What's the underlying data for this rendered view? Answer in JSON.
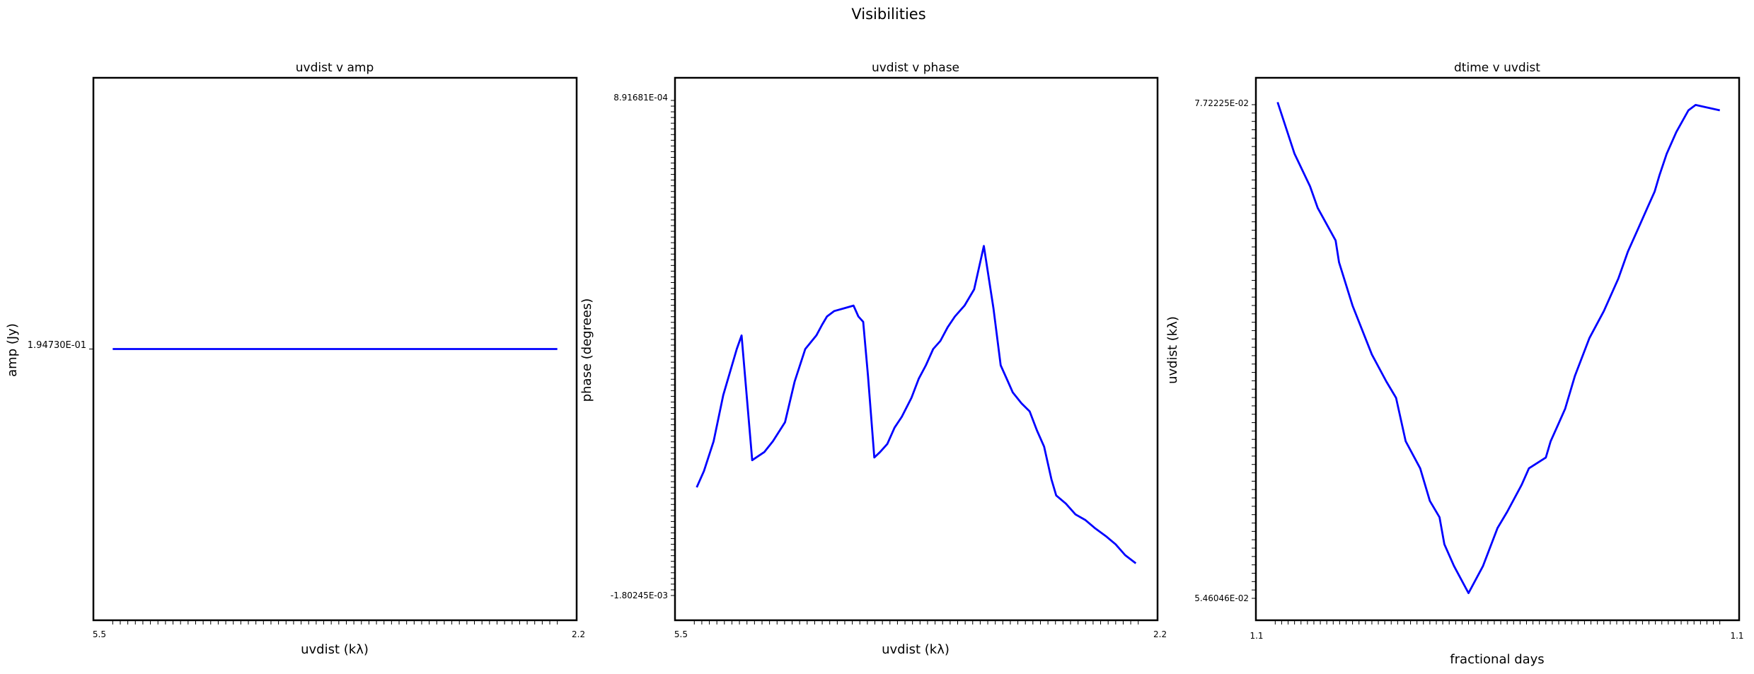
{
  "figure": {
    "title": "Visibilities"
  },
  "chart_data": [
    {
      "type": "line",
      "title": "uvdist v amp",
      "xlabel": "uvdist (kλ)",
      "ylabel": "amp (Jy)",
      "line_color": "#0000ff",
      "grid": false,
      "y_tick_labels": [
        "1.94730E-01"
      ],
      "x_first_tick_label": "5.5",
      "x_last_tick_label": "2.2",
      "x_tick_count": 60,
      "xlim": [
        0,
        1
      ],
      "ylim": [
        0,
        1
      ],
      "x": [
        0.04,
        0.96
      ],
      "y": [
        0.5,
        0.5
      ]
    },
    {
      "type": "line",
      "title": "uvdist v phase",
      "xlabel": "uvdist (kλ)",
      "ylabel": "phase (degrees)",
      "line_color": "#0000ff",
      "grid": false,
      "y_tick_labels": [
        "8.91681E-04",
        "-1.80245E-03"
      ],
      "x_first_tick_label": "5.5",
      "x_last_tick_label": "2.2",
      "x_tick_count": 60,
      "y_tick_count": 88,
      "xlim": [
        0,
        1
      ],
      "ylim": [
        0,
        1
      ],
      "x": [
        0.045,
        0.06,
        0.08,
        0.1,
        0.128,
        0.138,
        0.16,
        0.185,
        0.203,
        0.228,
        0.248,
        0.27,
        0.293,
        0.305,
        0.315,
        0.33,
        0.35,
        0.37,
        0.38,
        0.39,
        0.4,
        0.413,
        0.425,
        0.44,
        0.455,
        0.47,
        0.49,
        0.505,
        0.52,
        0.535,
        0.55,
        0.565,
        0.58,
        0.6,
        0.62,
        0.64,
        0.66,
        0.675,
        0.69,
        0.7,
        0.718,
        0.735,
        0.75,
        0.765,
        0.78,
        0.79,
        0.81,
        0.83,
        0.85,
        0.87,
        0.893,
        0.913,
        0.933,
        0.955
      ],
      "y": [
        0.245,
        0.275,
        0.33,
        0.415,
        0.5,
        0.525,
        0.295,
        0.31,
        0.33,
        0.365,
        0.44,
        0.5,
        0.525,
        0.545,
        0.56,
        0.57,
        0.575,
        0.58,
        0.56,
        0.55,
        0.45,
        0.3,
        0.31,
        0.325,
        0.355,
        0.375,
        0.41,
        0.445,
        0.47,
        0.5,
        0.515,
        0.54,
        0.56,
        0.58,
        0.61,
        0.69,
        0.575,
        0.47,
        0.44,
        0.42,
        0.4,
        0.385,
        0.35,
        0.32,
        0.26,
        0.23,
        0.215,
        0.195,
        0.185,
        0.17,
        0.155,
        0.14,
        0.12,
        0.105
      ]
    },
    {
      "type": "line",
      "title": "dtime v uvdist",
      "xlabel": "fractional days",
      "ylabel": "uvdist (kλ)",
      "line_color": "#0000ff",
      "grid": false,
      "y_tick_labels": [
        "7.72225E-02",
        "5.46046E-02"
      ],
      "x_first_tick_label": "1.1",
      "x_last_tick_label": "1.1",
      "x_tick_count": 70,
      "y_tick_count": 60,
      "xlim": [
        0,
        1
      ],
      "ylim": [
        0,
        1
      ],
      "x": [
        0.045,
        0.08,
        0.112,
        0.128,
        0.165,
        0.172,
        0.2,
        0.24,
        0.27,
        0.29,
        0.3,
        0.31,
        0.34,
        0.36,
        0.38,
        0.39,
        0.41,
        0.44,
        0.47,
        0.5,
        0.52,
        0.55,
        0.565,
        0.6,
        0.61,
        0.625,
        0.64,
        0.66,
        0.69,
        0.72,
        0.75,
        0.77,
        0.79,
        0.81,
        0.825,
        0.835,
        0.85,
        0.87,
        0.895,
        0.91,
        0.96
      ],
      "y": [
        0.955,
        0.86,
        0.8,
        0.76,
        0.7,
        0.66,
        0.58,
        0.49,
        0.44,
        0.41,
        0.37,
        0.33,
        0.28,
        0.22,
        0.19,
        0.14,
        0.1,
        0.05,
        0.1,
        0.17,
        0.2,
        0.25,
        0.28,
        0.3,
        0.33,
        0.36,
        0.39,
        0.45,
        0.52,
        0.57,
        0.63,
        0.68,
        0.72,
        0.76,
        0.79,
        0.82,
        0.86,
        0.9,
        0.94,
        0.95,
        0.94
      ]
    }
  ]
}
